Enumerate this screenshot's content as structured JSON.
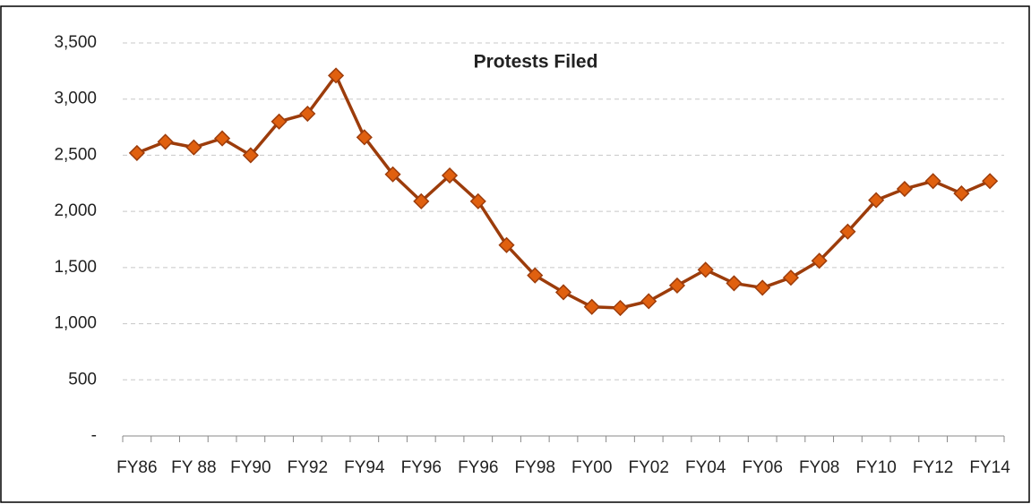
{
  "chart_data": {
    "type": "line",
    "title": "Protests Filed",
    "categories": [
      "FY86",
      null,
      "FY 88",
      null,
      "FY90",
      null,
      "FY92",
      null,
      "FY94",
      null,
      "FY96",
      null,
      "FY96",
      null,
      "FY98",
      null,
      "FY00",
      null,
      "FY02",
      null,
      "FY04",
      null,
      "FY06",
      null,
      "FY08",
      null,
      "FY10",
      null,
      "FY12",
      null,
      "FY14"
    ],
    "series": [
      {
        "color": "#9c3c0b",
        "marker_color": "#e0600f",
        "values": [
          2520,
          2620,
          2570,
          2650,
          2500,
          2800,
          2870,
          3210,
          2660,
          2330,
          2090,
          2320,
          2090,
          1700,
          1430,
          1280,
          1150,
          1140,
          1200,
          1340,
          1480,
          1360,
          1320,
          1410,
          1560,
          1820,
          2100,
          2200,
          2270,
          2160,
          2270
        ]
      }
    ],
    "ylim": [
      0,
      3500
    ],
    "yticks": [
      {
        "value": 0,
        "label": "-"
      },
      500,
      {
        "value": 1000,
        "label": "1,000"
      },
      {
        "value": 1500,
        "label": "1,500"
      },
      {
        "value": 2000,
        "label": "2,000"
      },
      {
        "value": 2500,
        "label": "2,500"
      },
      {
        "value": 3000,
        "label": "3,000"
      },
      {
        "value": 3500,
        "label": "3,500"
      }
    ],
    "grid": true
  }
}
